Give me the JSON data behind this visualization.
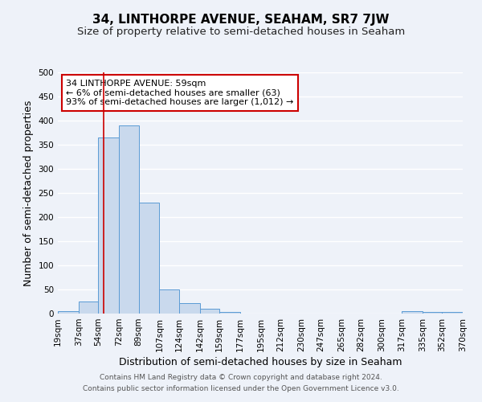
{
  "title": "34, LINTHORPE AVENUE, SEAHAM, SR7 7JW",
  "subtitle": "Size of property relative to semi-detached houses in Seaham",
  "xlabel": "Distribution of semi-detached houses by size in Seaham",
  "ylabel": "Number of semi-detached properties",
  "bin_edges": [
    19,
    37,
    54,
    72,
    89,
    107,
    124,
    142,
    159,
    177,
    195,
    212,
    230,
    247,
    265,
    282,
    300,
    317,
    335,
    352,
    370
  ],
  "bar_heights": [
    5,
    25,
    365,
    390,
    230,
    50,
    22,
    10,
    3,
    0,
    0,
    0,
    0,
    0,
    0,
    0,
    0,
    5,
    3,
    3
  ],
  "bar_color": "#c9d9ed",
  "bar_edge_color": "#5b9bd5",
  "property_size": 59,
  "vline_color": "#cc0000",
  "annotation_line1": "34 LINTHORPE AVENUE: 59sqm",
  "annotation_line2": "← 6% of semi-detached houses are smaller (63)",
  "annotation_line3": "93% of semi-detached houses are larger (1,012) →",
  "annotation_box_color": "#ffffff",
  "annotation_box_edge": "#cc0000",
  "ylim": [
    0,
    500
  ],
  "tick_labels": [
    "19sqm",
    "37sqm",
    "54sqm",
    "72sqm",
    "89sqm",
    "107sqm",
    "124sqm",
    "142sqm",
    "159sqm",
    "177sqm",
    "195sqm",
    "212sqm",
    "230sqm",
    "247sqm",
    "265sqm",
    "282sqm",
    "300sqm",
    "317sqm",
    "335sqm",
    "352sqm",
    "370sqm"
  ],
  "footer_line1": "Contains HM Land Registry data © Crown copyright and database right 2024.",
  "footer_line2": "Contains public sector information licensed under the Open Government Licence v3.0.",
  "background_color": "#eef2f9",
  "grid_color": "#ffffff",
  "title_fontsize": 11,
  "subtitle_fontsize": 9.5,
  "axis_label_fontsize": 9,
  "tick_fontsize": 7.5,
  "annotation_fontsize": 8,
  "footer_fontsize": 6.5
}
